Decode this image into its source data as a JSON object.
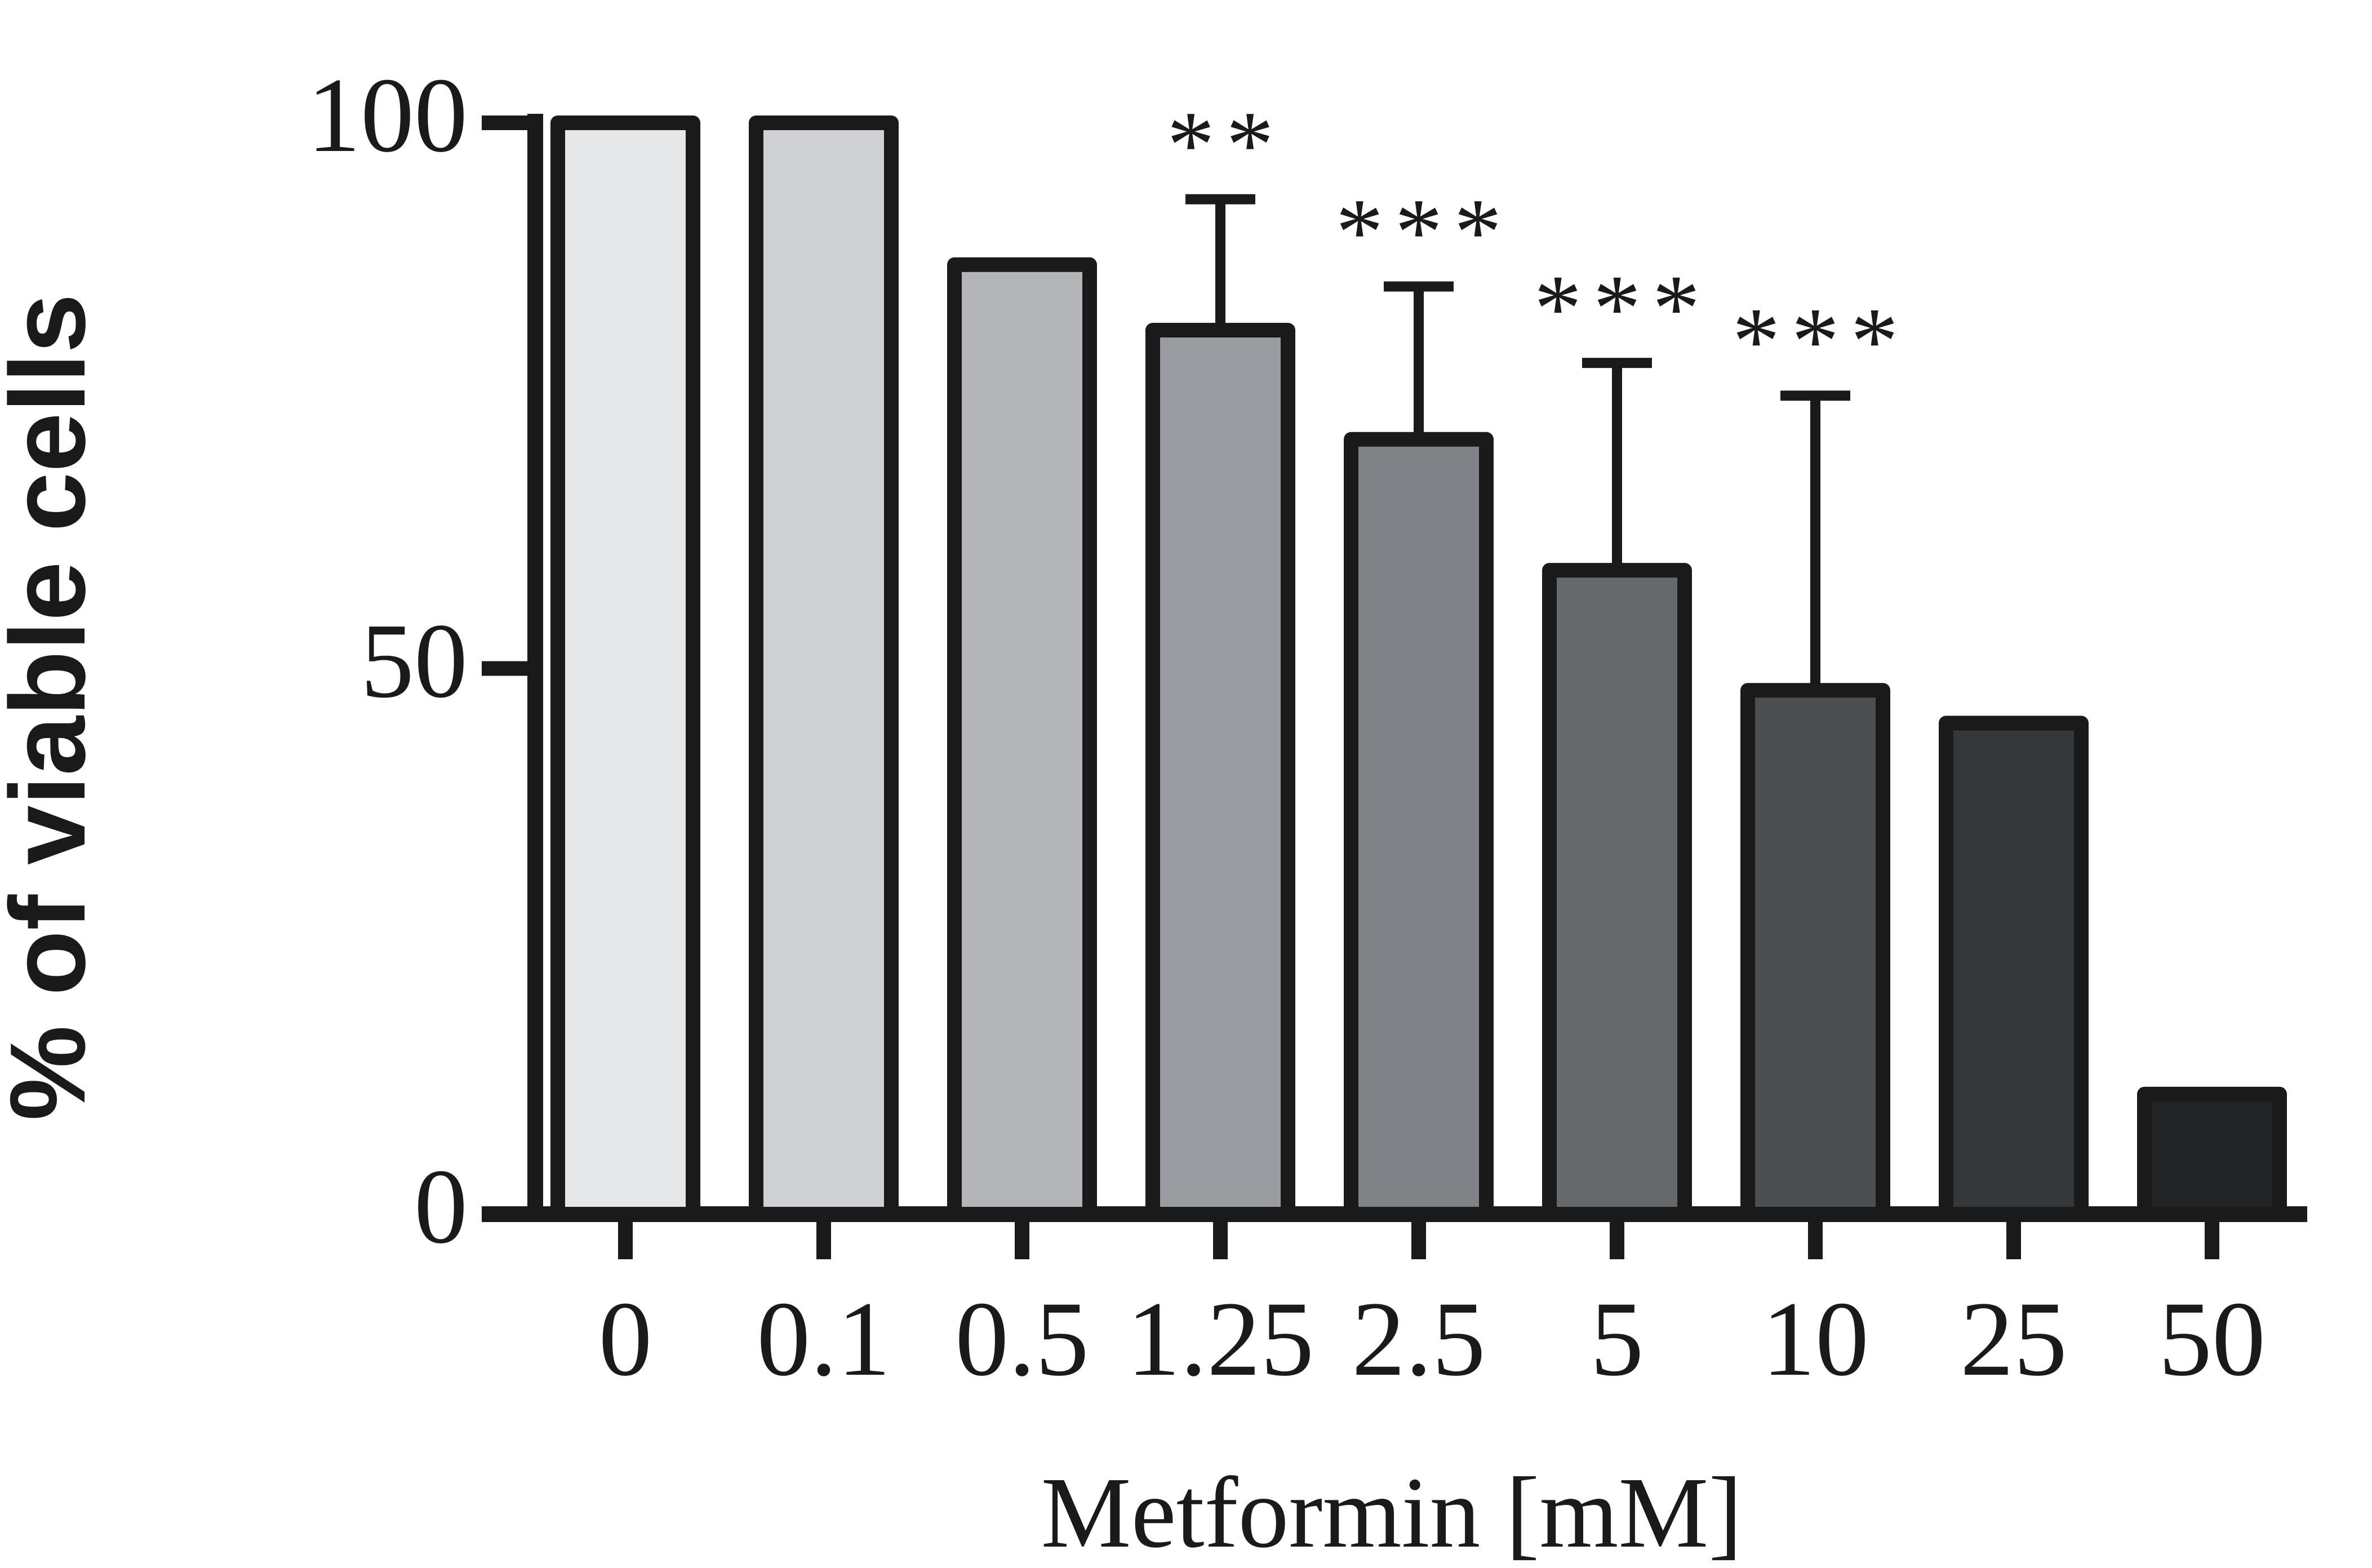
{
  "chart_data": {
    "type": "bar",
    "title": "",
    "xlabel": "Metformin [mM]",
    "ylabel": "% of viable cells",
    "categories": [
      "0",
      "0.1",
      "0.5",
      "1.25",
      "2.5",
      "5",
      "10",
      "25",
      "50"
    ],
    "values": [
      100,
      100,
      87,
      81,
      71,
      59,
      48,
      45,
      11
    ],
    "error_upper": [
      null,
      null,
      null,
      93,
      85,
      78,
      75,
      null,
      null
    ],
    "significance": [
      "",
      "",
      "",
      "**",
      "***",
      "***",
      "***",
      "",
      ""
    ],
    "bar_colors": [
      "#e6e7e9",
      "#cfd0d3",
      "#b3b5b8",
      "#999ca0",
      "#7f8387",
      "#65696c",
      "#4b4f52",
      "#35383b",
      "#222426"
    ],
    "ylim": [
      0,
      100
    ],
    "yticks": [
      "0",
      "50",
      "100"
    ],
    "grid": false,
    "legend": "none"
  }
}
